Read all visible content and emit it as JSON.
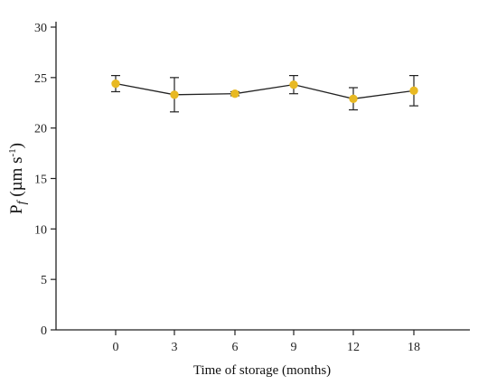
{
  "chart_data": {
    "type": "line",
    "title": "",
    "xlabel": "Time of storage (months)",
    "ylabel": {
      "main": "P",
      "sub": "f",
      "unit": " (µm s",
      "sup": "-1",
      "close": ")"
    },
    "categories": [
      "0",
      "3",
      "6",
      "9",
      "12",
      "18"
    ],
    "series": [
      {
        "name": "",
        "values": [
          24.4,
          23.3,
          23.4,
          24.3,
          22.9,
          23.7
        ],
        "errors": [
          0.8,
          1.7,
          0.2,
          0.9,
          1.1,
          1.5
        ]
      }
    ],
    "yticks": [
      "0",
      "5",
      "10",
      "15",
      "20",
      "25",
      "30"
    ],
    "ylim": [
      0,
      30
    ],
    "grid": false,
    "colors": {
      "marker": "#E8B923",
      "line": "#222222",
      "errorbar": "#222222",
      "axis": "#222222"
    }
  }
}
